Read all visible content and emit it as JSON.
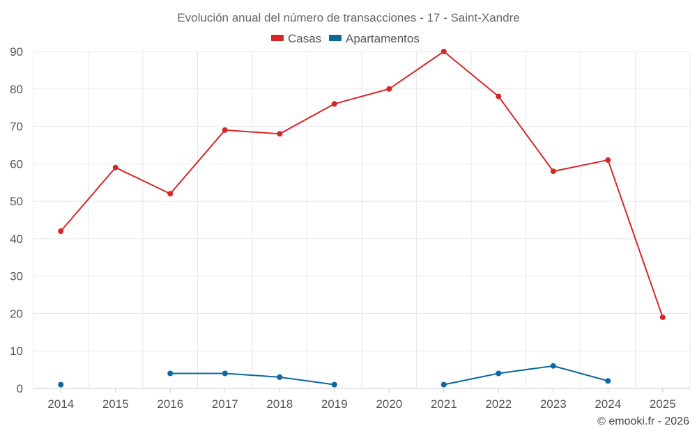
{
  "chart_data": {
    "type": "line",
    "title": "Evolución anual del número de transacciones - 17 - Saint-Xandre",
    "categories": [
      "2014",
      "2015",
      "2016",
      "2017",
      "2018",
      "2019",
      "2020",
      "2021",
      "2022",
      "2023",
      "2024",
      "2025"
    ],
    "ylim": [
      0,
      90
    ],
    "yticks": [
      0,
      10,
      20,
      30,
      40,
      50,
      60,
      70,
      80,
      90
    ],
    "grid": true,
    "legend_position": "top-center",
    "series": [
      {
        "name": "Casas",
        "color": "#d62728",
        "values": [
          42,
          59,
          52,
          69,
          68,
          76,
          80,
          90,
          78,
          58,
          61,
          19
        ]
      },
      {
        "name": "Apartamentos",
        "color": "#0868a0",
        "values": [
          1,
          null,
          4,
          4,
          3,
          1,
          null,
          1,
          4,
          6,
          2,
          null
        ]
      }
    ]
  },
  "credit": "© emooki.fr - 2026"
}
